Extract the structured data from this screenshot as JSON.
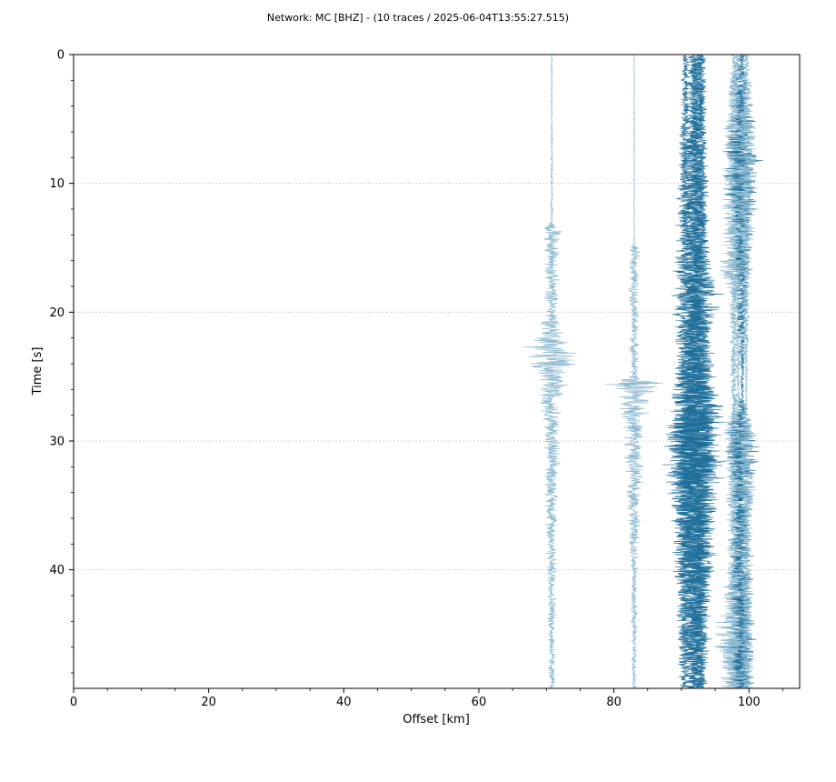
{
  "chart_data": {
    "type": "line",
    "title": "Network: MC [BHZ] - (10 traces / 2025-06-04T13:55:27.515)",
    "xlabel": "Offset [km]",
    "ylabel": "Time [s]",
    "xlim": [
      0,
      107.5
    ],
    "ylim": [
      49.2,
      0
    ],
    "y_inverted": true,
    "grid": "horizontal",
    "x_ticks": [
      0,
      20,
      40,
      60,
      80,
      100
    ],
    "x_tick_labels": [
      "0",
      "20",
      "40",
      "60",
      "80",
      "100"
    ],
    "y_ticks": [
      0,
      10,
      20,
      30,
      40
    ],
    "y_tick_labels": [
      "0",
      "10",
      "20",
      "30",
      "40"
    ],
    "colors": {
      "dark": "#1f6f9a",
      "light": "#8ab8d0",
      "grid": "#cccccc"
    },
    "traces": [
      {
        "offset": 70.8,
        "envelope": [
          [
            0,
            0.15
          ],
          [
            13,
            0.2
          ],
          [
            13.5,
            2.0
          ],
          [
            14.5,
            1.3
          ],
          [
            20,
            1.2
          ],
          [
            22,
            2.6
          ],
          [
            23,
            5.2
          ],
          [
            25,
            3.4
          ],
          [
            27,
            1.8
          ],
          [
            30,
            1.5
          ],
          [
            33,
            1.2
          ],
          [
            40,
            0.9
          ],
          [
            49.2,
            0.6
          ]
        ],
        "shade": "light"
      },
      {
        "offset": 83.0,
        "envelope": [
          [
            0,
            0.1
          ],
          [
            14.7,
            0.1
          ],
          [
            15,
            0.9
          ],
          [
            25,
            0.8
          ],
          [
            25.5,
            5.0
          ],
          [
            27,
            3.0
          ],
          [
            29,
            1.8
          ],
          [
            33,
            1.4
          ],
          [
            40,
            0.7
          ],
          [
            49.2,
            0.4
          ]
        ],
        "shade": "light"
      },
      {
        "offset": 90.6,
        "envelope": [
          [
            0,
            0.6
          ],
          [
            10,
            1.4
          ],
          [
            18,
            2.2
          ],
          [
            25,
            1.8
          ],
          [
            29,
            3.2
          ],
          [
            35,
            2.4
          ],
          [
            42,
            1.8
          ],
          [
            49.2,
            1.0
          ]
        ],
        "shade": "dark"
      },
      {
        "offset": 91.8,
        "envelope": [
          [
            0,
            1.0
          ],
          [
            10,
            2.0
          ],
          [
            20,
            2.4
          ],
          [
            28,
            4.0
          ],
          [
            32,
            5.0
          ],
          [
            38,
            3.5
          ],
          [
            45,
            2.2
          ],
          [
            49.2,
            1.4
          ]
        ],
        "shade": "dark"
      },
      {
        "offset": 92.3,
        "envelope": [
          [
            0,
            1.2
          ],
          [
            10,
            1.8
          ],
          [
            20,
            2.0
          ],
          [
            28,
            4.5
          ],
          [
            33,
            5.0
          ],
          [
            40,
            3.0
          ],
          [
            49.2,
            1.6
          ]
        ],
        "shade": "dark"
      },
      {
        "offset": 93.0,
        "envelope": [
          [
            0,
            0.8
          ],
          [
            17,
            1.5
          ],
          [
            18,
            4.0
          ],
          [
            22,
            1.5
          ],
          [
            29,
            3.5
          ],
          [
            35,
            2.2
          ],
          [
            49.2,
            1.0
          ]
        ],
        "shade": "dark"
      },
      {
        "offset": 97.8,
        "envelope": [
          [
            0,
            0.6
          ],
          [
            6,
            1.8
          ],
          [
            12,
            2.2
          ],
          [
            17,
            3.0
          ],
          [
            18.5,
            1.0
          ],
          [
            28,
            0.5
          ],
          [
            29,
            1.8
          ],
          [
            40,
            1.2
          ],
          [
            44,
            3.0
          ],
          [
            47,
            3.5
          ],
          [
            49.2,
            3.0
          ]
        ],
        "shade": "light"
      },
      {
        "offset": 98.4,
        "envelope": [
          [
            0,
            0.7
          ],
          [
            6,
            2.2
          ],
          [
            10,
            2.5
          ],
          [
            15,
            2.0
          ],
          [
            18,
            1.0
          ],
          [
            26,
            0.2
          ],
          [
            29,
            2.6
          ],
          [
            36,
            1.4
          ],
          [
            43,
            2.6
          ],
          [
            49.2,
            3.0
          ]
        ],
        "shade": "light"
      },
      {
        "offset": 99.0,
        "envelope": [
          [
            0,
            0.6
          ],
          [
            6,
            2.5
          ],
          [
            8,
            3.5
          ],
          [
            12,
            2.0
          ],
          [
            18,
            1.2
          ],
          [
            26.5,
            0.2
          ],
          [
            30,
            3.0
          ],
          [
            35,
            1.6
          ],
          [
            44,
            2.2
          ],
          [
            49.2,
            2.0
          ]
        ],
        "shade": "dark"
      },
      {
        "offset": 99.6,
        "envelope": [
          [
            0,
            0.5
          ],
          [
            6,
            1.6
          ],
          [
            11,
            2.0
          ],
          [
            18,
            0.8
          ],
          [
            27,
            0.1
          ],
          [
            30,
            2.0
          ],
          [
            40,
            1.0
          ],
          [
            49.2,
            1.2
          ]
        ],
        "shade": "light"
      }
    ]
  }
}
